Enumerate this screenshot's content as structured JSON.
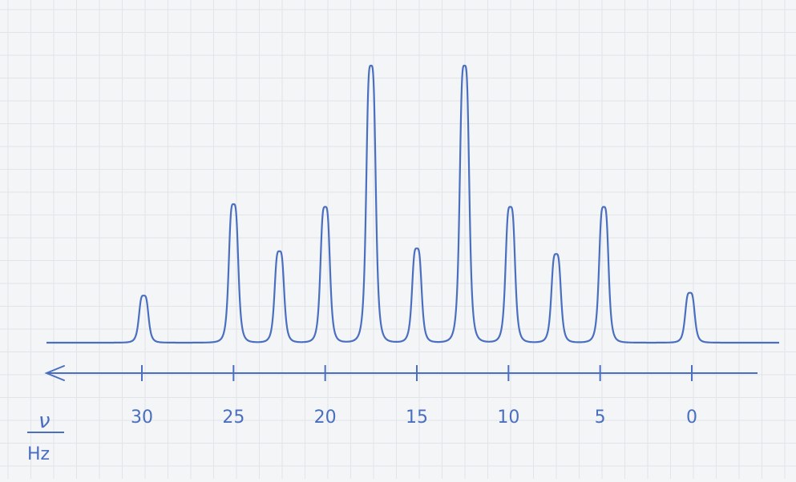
{
  "chart_data": {
    "type": "line",
    "title": "",
    "xlabel": "ν / Hz",
    "xlabel_numerator": "ν",
    "xlabel_unit": "Hz",
    "ylabel": "",
    "x_reversed": true,
    "xlim": [
      34,
      -4
    ],
    "ylim": [
      0,
      1
    ],
    "grid": true,
    "ticks": [
      30,
      25,
      20,
      15,
      10,
      5,
      0
    ],
    "tick_labels": [
      "30",
      "25",
      "20",
      "15",
      "10",
      "5",
      "0"
    ],
    "peaks": [
      {
        "x": 29.9,
        "y": 0.17
      },
      {
        "x": 25.0,
        "y": 0.5
      },
      {
        "x": 22.5,
        "y": 0.33
      },
      {
        "x": 20.0,
        "y": 0.49
      },
      {
        "x": 17.5,
        "y": 1.0
      },
      {
        "x": 15.0,
        "y": 0.34
      },
      {
        "x": 12.4,
        "y": 1.0
      },
      {
        "x": 9.9,
        "y": 0.49
      },
      {
        "x": 7.4,
        "y": 0.32
      },
      {
        "x": 4.8,
        "y": 0.49
      },
      {
        "x": 0.1,
        "y": 0.18
      }
    ]
  },
  "colors": {
    "ink": "#4a6fc0",
    "grid": "#e2e4ea",
    "paper": "#f4f5f7"
  }
}
